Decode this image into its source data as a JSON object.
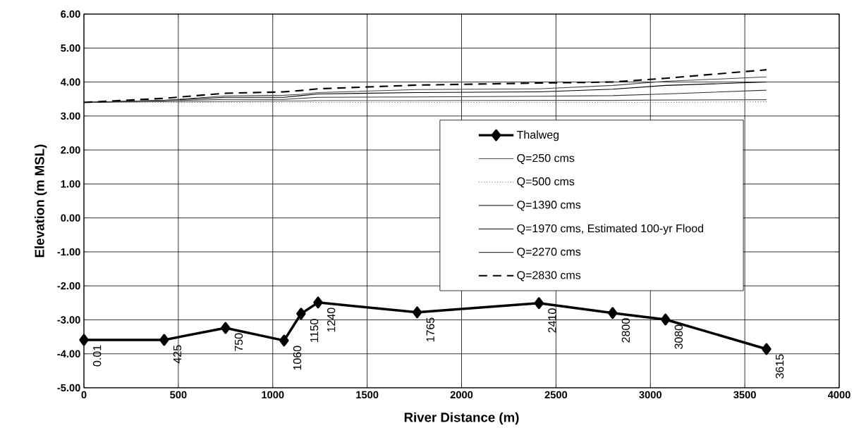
{
  "chart_data": {
    "type": "line",
    "xlabel": "River Distance (m)",
    "ylabel": "Elevation (m MSL)",
    "x": [
      0.01,
      425,
      750,
      1060,
      1150,
      1240,
      1765,
      2410,
      2800,
      3080,
      3615
    ],
    "xlim": [
      0,
      4000
    ],
    "xticks": [
      0,
      500,
      1000,
      1500,
      2000,
      2500,
      3000,
      3500,
      4000
    ],
    "ylim": [
      -5,
      6
    ],
    "yticks": [
      {
        "value": -5,
        "label": "-5.00"
      },
      {
        "value": -4,
        "label": "-4.00"
      },
      {
        "value": -3,
        "label": "-3.00"
      },
      {
        "value": -2,
        "label": "-2.00"
      },
      {
        "value": -1,
        "label": "-1.00"
      },
      {
        "value": 0,
        "label": "0.00"
      },
      {
        "value": 1,
        "label": "1.00"
      },
      {
        "value": 2,
        "label": "2.00"
      },
      {
        "value": 3,
        "label": "3.00"
      },
      {
        "value": 4,
        "label": "4.00"
      },
      {
        "value": 5,
        "label": "5.00"
      },
      {
        "value": 6,
        "label": "6.00"
      }
    ],
    "grid": true,
    "legend": "right",
    "annotations": [
      {
        "text": "0.01",
        "x": 0.01,
        "y": -3.59
      },
      {
        "text": "425",
        "x": 425,
        "y": -3.59
      },
      {
        "text": "750",
        "x": 750,
        "y": -3.24
      },
      {
        "text": "1060",
        "x": 1060,
        "y": -3.61
      },
      {
        "text": "1150",
        "x": 1150,
        "y": -2.82
      },
      {
        "text": "1240",
        "x": 1240,
        "y": -2.49
      },
      {
        "text": "1765",
        "x": 1765,
        "y": -2.78
      },
      {
        "text": "2410",
        "x": 2410,
        "y": -2.51
      },
      {
        "text": "2800",
        "x": 2800,
        "y": -2.8
      },
      {
        "text": "3080",
        "x": 3080,
        "y": -2.99
      },
      {
        "text": "3615",
        "x": 3615,
        "y": -3.86
      }
    ],
    "series": [
      {
        "name": "Thalweg",
        "color": "#000000",
        "marker": "diamond",
        "line_style": "solid",
        "values": [
          -3.59,
          -3.59,
          -3.24,
          -3.61,
          -2.82,
          -2.49,
          -2.78,
          -2.51,
          -2.8,
          -2.99,
          -3.86
        ]
      },
      {
        "name": "Q=250 cms",
        "color": "#555555",
        "marker": "none",
        "line_style": "solid",
        "values": [
          3.4,
          3.42,
          3.43,
          3.44,
          3.44,
          3.45,
          3.45,
          3.46,
          3.46,
          3.47,
          3.48
        ]
      },
      {
        "name": "Q=500 cms",
        "color": "#666666",
        "marker": "none",
        "line_style": "dotted",
        "values": [
          3.4,
          3.4,
          3.4,
          3.4,
          3.4,
          3.4,
          3.4,
          3.4,
          3.4,
          3.4,
          3.42
        ]
      },
      {
        "name": "Q=1390 cms",
        "color": "#333333",
        "marker": "none",
        "line_style": "solid",
        "values": [
          3.4,
          3.45,
          3.49,
          3.49,
          3.52,
          3.55,
          3.56,
          3.58,
          3.6,
          3.65,
          3.76
        ]
      },
      {
        "name": "Q=1970 cms, Estimated 100-yr Flood",
        "color": "#000000",
        "marker": "none",
        "line_style": "solid",
        "values": [
          3.4,
          3.46,
          3.55,
          3.55,
          3.6,
          3.65,
          3.69,
          3.71,
          3.79,
          3.9,
          4.0
        ]
      },
      {
        "name": "Q=2270 cms",
        "color": "#444444",
        "marker": "none",
        "line_style": "solid",
        "values": [
          3.4,
          3.46,
          3.59,
          3.61,
          3.64,
          3.69,
          3.78,
          3.8,
          3.9,
          4.02,
          4.15
        ]
      },
      {
        "name": "Q=2830 cms",
        "color": "#000000",
        "marker": "none",
        "line_style": "dashed",
        "values": [
          3.4,
          3.52,
          3.67,
          3.71,
          3.75,
          3.8,
          3.91,
          3.97,
          4.0,
          4.11,
          4.36
        ]
      }
    ]
  }
}
